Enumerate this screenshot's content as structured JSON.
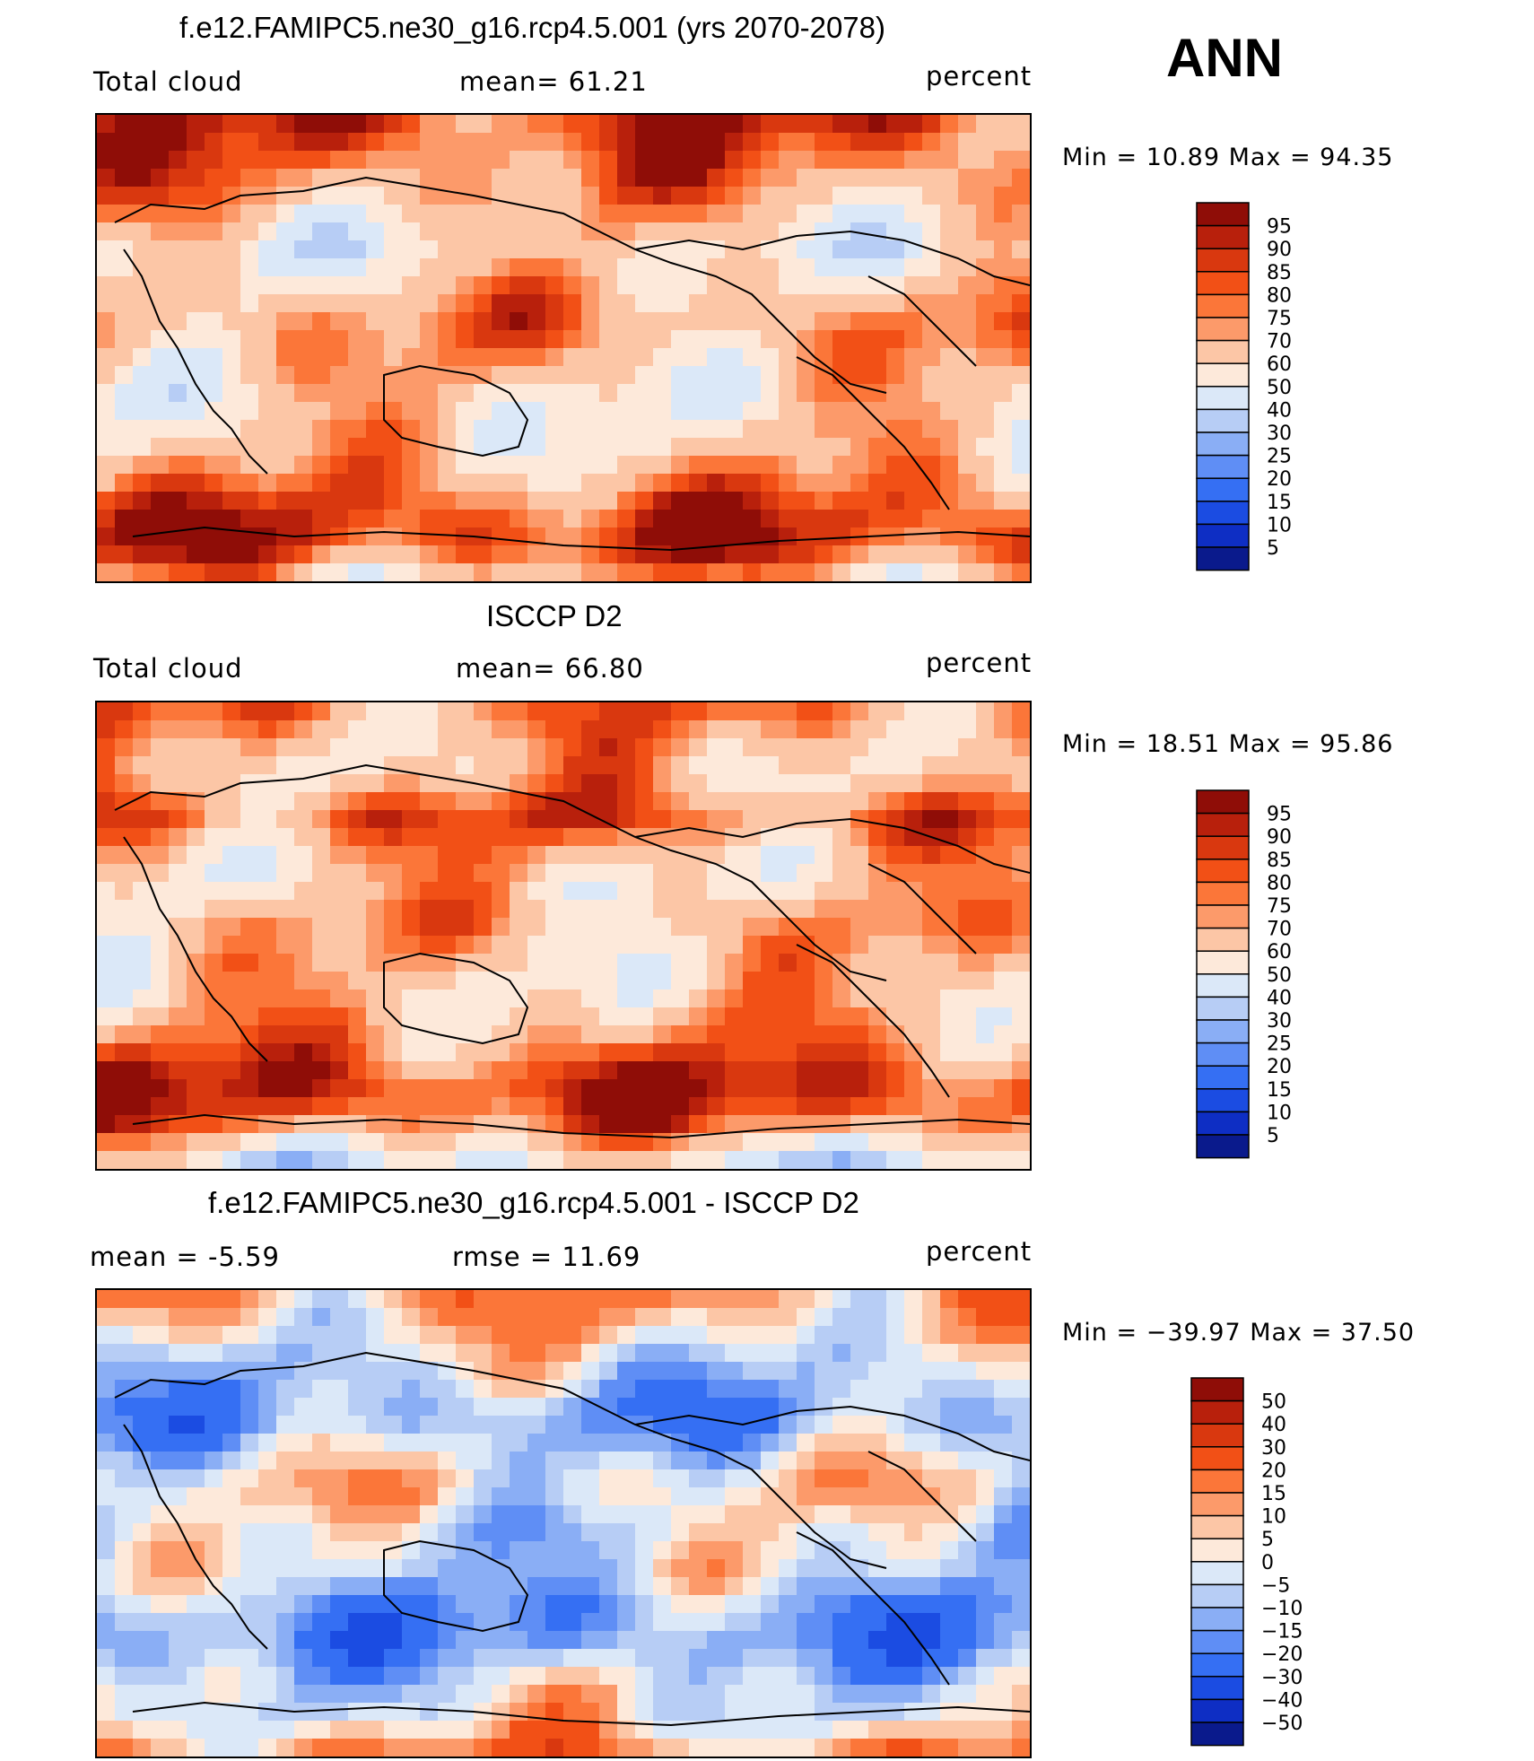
{
  "season": "ANN",
  "chart_data": [
    {
      "type": "heatmap",
      "title": "f.e12.FAMIPC5.ne30_g16.rcp4.5.001 (yrs 2070-2078)",
      "left_label": "Total cloud",
      "center_label": "mean=   61.21",
      "units": "percent",
      "minmax": "Min =   10.89  Max =    94.35",
      "min": 10.89,
      "max": 94.35,
      "mean": 61.21,
      "colorbar_labels": [
        "95",
        "90",
        "85",
        "80",
        "75",
        "70",
        "60",
        "50",
        "40",
        "30",
        "25",
        "20",
        "15",
        "10",
        "5"
      ],
      "colorbar_colors": [
        "#8f0d07",
        "#b8200c",
        "#d9380f",
        "#f25016",
        "#fb7639",
        "#fc9a6a",
        "#fcc6a6",
        "#fde9da",
        "#dbe8f8",
        "#b7cdf5",
        "#8aaef5",
        "#5f8ef5",
        "#356ff3",
        "#1b4ce2",
        "#0e2ec4",
        "#0a1a8c"
      ],
      "latitude_bands": [
        87,
        84,
        80,
        76,
        70,
        64,
        60,
        56,
        62,
        66,
        72,
        74,
        70,
        66,
        62,
        58,
        60,
        62,
        66,
        72,
        80,
        86,
        88,
        82,
        70,
        62
      ]
    },
    {
      "type": "heatmap",
      "title": "ISCCP D2",
      "left_label": "Total cloud",
      "center_label": "mean=   66.80",
      "units": "percent",
      "minmax": "Min =   18.51  Max =    95.86",
      "min": 18.51,
      "max": 95.86,
      "mean": 66.8,
      "colorbar_labels": [
        "95",
        "90",
        "85",
        "80",
        "75",
        "70",
        "60",
        "50",
        "40",
        "30",
        "25",
        "20",
        "15",
        "10",
        "5"
      ],
      "colorbar_colors": [
        "#8f0d07",
        "#b8200c",
        "#d9380f",
        "#f25016",
        "#fb7639",
        "#fc9a6a",
        "#fcc6a6",
        "#fde9da",
        "#dbe8f8",
        "#b7cdf5",
        "#8aaef5",
        "#5f8ef5",
        "#356ff3",
        "#1b4ce2",
        "#0e2ec4",
        "#0a1a8c"
      ],
      "latitude_bands": [
        76,
        72,
        68,
        66,
        70,
        78,
        82,
        72,
        66,
        62,
        64,
        70,
        68,
        66,
        64,
        62,
        66,
        70,
        76,
        84,
        90,
        88,
        80,
        64,
        50,
        42
      ]
    },
    {
      "type": "heatmap",
      "title": "f.e12.FAMIPC5.ne30_g16.rcp4.5.001 - ISCCP D2",
      "left_label": "mean =    -5.59",
      "center_label": "rmse =    11.69",
      "units": "percent",
      "minmax": "Min = −39.97  Max =    37.50",
      "min": -39.97,
      "max": 37.5,
      "mean": -5.59,
      "rmse": 11.69,
      "colorbar_labels": [
        "50",
        "40",
        "30",
        "20",
        "15",
        "10",
        "5",
        "0",
        "−5",
        "−10",
        "−15",
        "−20",
        "−30",
        "−40",
        "−50"
      ],
      "colorbar_colors": [
        "#8f0d07",
        "#b8200c",
        "#d9380f",
        "#f25016",
        "#fb7639",
        "#fc9a6a",
        "#fcc6a6",
        "#fde9da",
        "#dbe8f8",
        "#b7cdf5",
        "#8aaef5",
        "#5f8ef5",
        "#356ff3",
        "#1b4ce2",
        "#0e2ec4",
        "#0a1a8c"
      ],
      "latitude_bands": [
        12,
        8,
        4,
        -2,
        -6,
        -10,
        -14,
        -12,
        -6,
        0,
        4,
        2,
        -2,
        -4,
        -2,
        -6,
        -12,
        -16,
        -18,
        -14,
        -8,
        -2,
        0,
        6,
        14,
        18
      ]
    }
  ]
}
